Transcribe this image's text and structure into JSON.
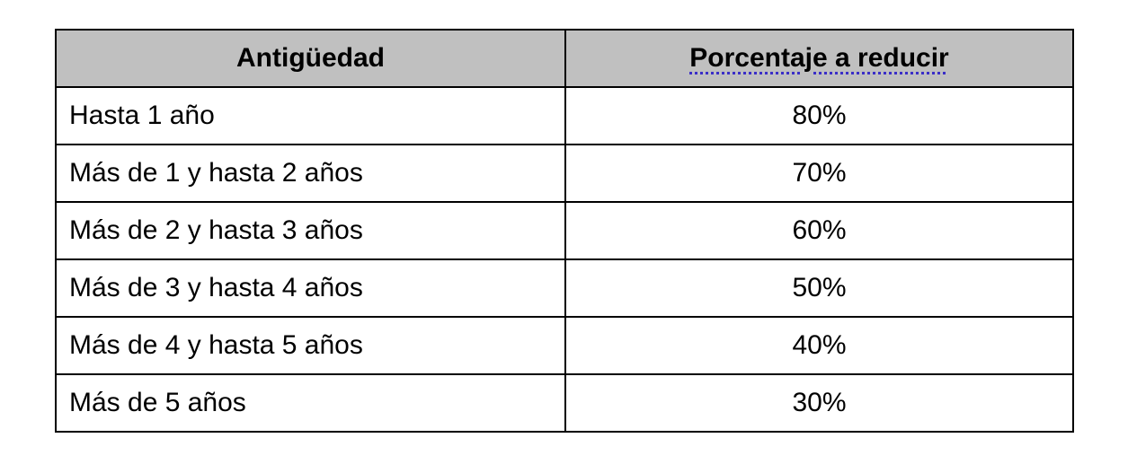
{
  "table": {
    "headers": [
      "Antigüedad",
      "Porcentaje a reducir"
    ],
    "rows": [
      [
        "Hasta 1 año",
        "80%"
      ],
      [
        "Más de 1 y hasta 2 años",
        "70%"
      ],
      [
        "Más de 2 y hasta 3 años",
        "60%"
      ],
      [
        "Más de 3 y hasta 4 años",
        "50%"
      ],
      [
        "Más de 4 y hasta 5 años",
        "40%"
      ],
      [
        "Más de 5 años",
        "30%"
      ]
    ]
  },
  "colors": {
    "header_bg": "#c0c0c0",
    "spellcheck_underline": "#3a2ec8"
  }
}
